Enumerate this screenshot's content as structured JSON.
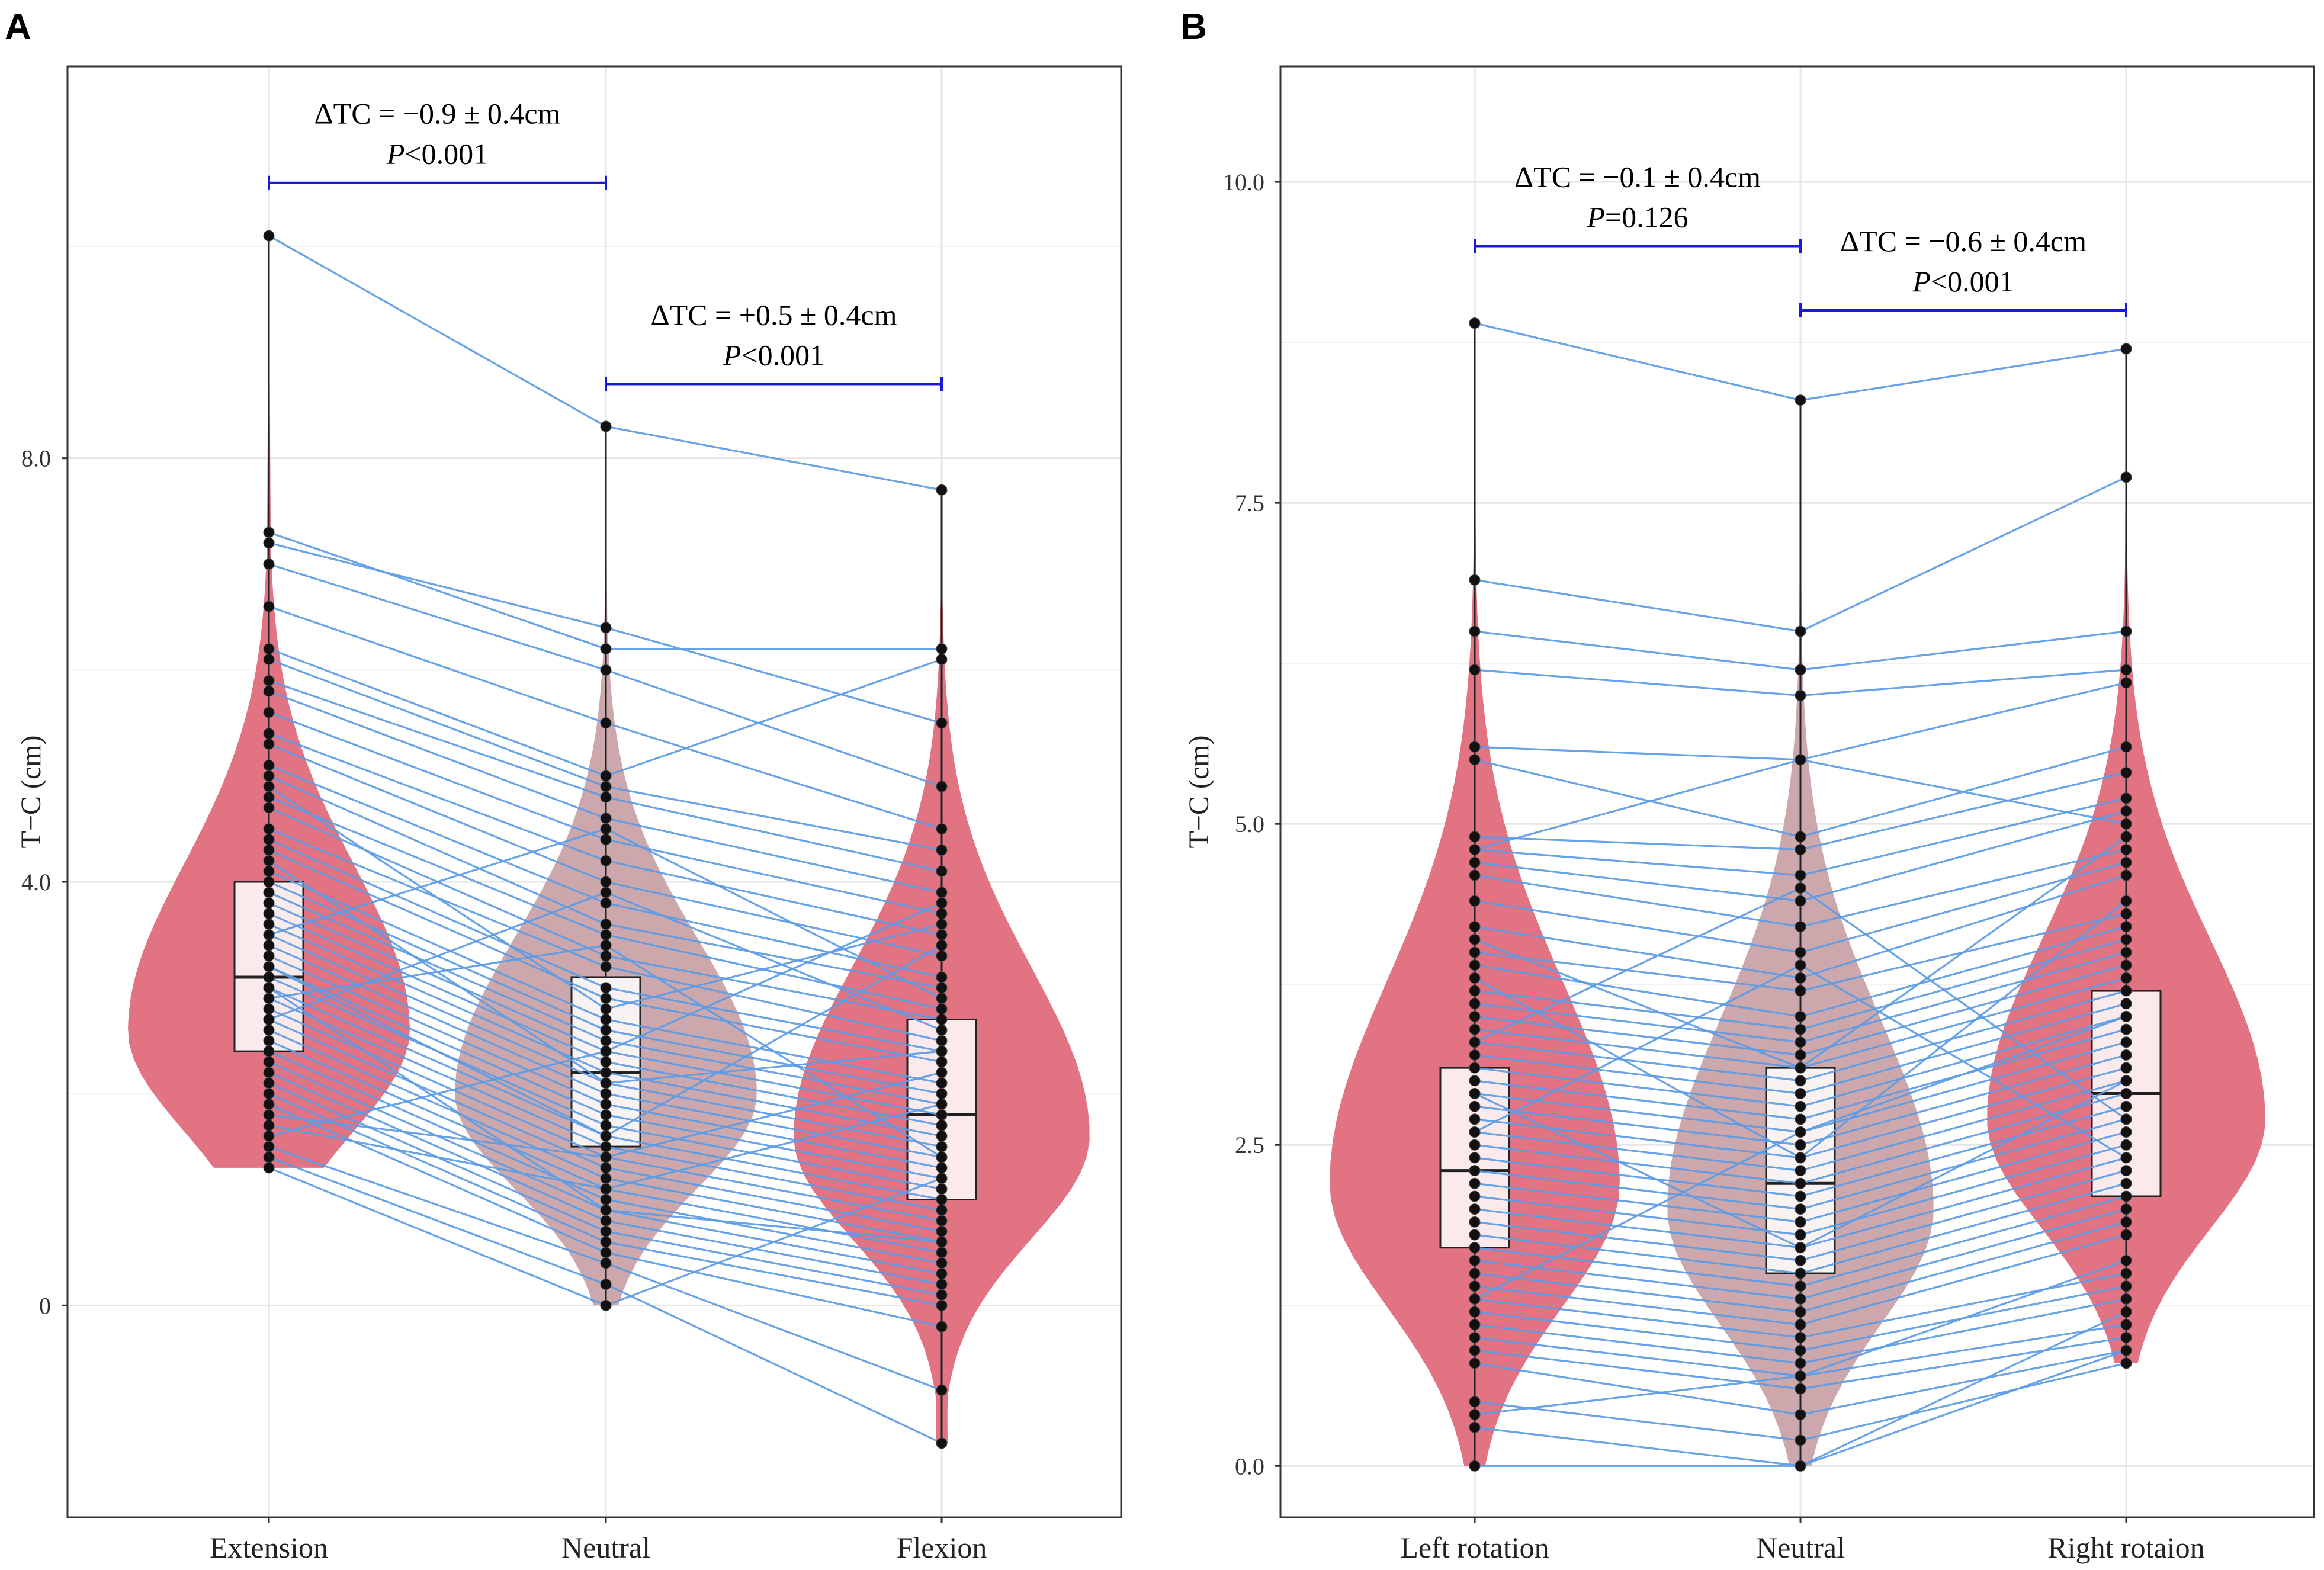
{
  "chart_data": [
    {
      "panel": "A",
      "type": "violin",
      "ylabel": "T−C (cm)",
      "ylim": [
        -2.0,
        11.7
      ],
      "yticks": [
        0,
        4.0,
        8.0
      ],
      "ytick_labels": [
        "0",
        "4.0",
        "8.0"
      ],
      "categories": [
        "Extension",
        "Neutral",
        "Flexion"
      ],
      "colors": [
        "#e06b7c",
        "#c9a3a8",
        "#e06b7c"
      ],
      "violins": [
        {
          "name": "Extension",
          "min": 1.3,
          "max": 10.1,
          "mode": 2.6,
          "box": {
            "q1": 2.4,
            "median": 3.1,
            "q3": 4.0,
            "lo": 1.3,
            "hi": 10.1
          }
        },
        {
          "name": "Neutral",
          "min": 0.0,
          "max": 8.3,
          "mode": 2.0,
          "box": {
            "q1": 1.5,
            "median": 2.2,
            "q3": 3.1,
            "lo": 0.0,
            "hi": 8.3
          }
        },
        {
          "name": "Flexion",
          "min": -1.3,
          "max": 7.7,
          "mode": 1.6,
          "box": {
            "q1": 1.0,
            "median": 1.8,
            "q3": 2.7,
            "lo": -1.3,
            "hi": 7.7
          }
        }
      ],
      "paired_values": [
        [
          10.1,
          8.3,
          7.7
        ],
        [
          7.3,
          6.2,
          6.2
        ],
        [
          7.2,
          6.4,
          5.5
        ],
        [
          7.0,
          6.0,
          4.9
        ],
        [
          6.6,
          5.5,
          4.5
        ],
        [
          6.1,
          4.9,
          4.3
        ],
        [
          5.9,
          4.8,
          4.1
        ],
        [
          5.8,
          4.6,
          3.9
        ],
        [
          5.6,
          4.4,
          3.7
        ],
        [
          5.4,
          4.2,
          3.5
        ],
        [
          5.3,
          4.0,
          3.3
        ],
        [
          5.1,
          3.8,
          3.1
        ],
        [
          5.0,
          3.6,
          3.0
        ],
        [
          4.8,
          3.5,
          2.8
        ],
        [
          4.7,
          3.3,
          2.7
        ],
        [
          4.5,
          3.2,
          2.5
        ],
        [
          4.4,
          3.0,
          2.4
        ],
        [
          4.3,
          2.9,
          2.3
        ],
        [
          4.1,
          2.7,
          2.1
        ],
        [
          4.0,
          2.6,
          2.0
        ],
        [
          3.9,
          2.5,
          1.9
        ],
        [
          3.8,
          2.4,
          1.8
        ],
        [
          3.7,
          2.3,
          1.7
        ],
        [
          3.6,
          2.2,
          1.6
        ],
        [
          3.5,
          2.1,
          1.5
        ],
        [
          3.4,
          2.0,
          1.4
        ],
        [
          3.3,
          1.9,
          1.3
        ],
        [
          3.2,
          1.8,
          1.2
        ],
        [
          3.1,
          1.7,
          1.1
        ],
        [
          3.0,
          1.6,
          1.0
        ],
        [
          2.9,
          1.5,
          0.9
        ],
        [
          2.8,
          1.4,
          0.8
        ],
        [
          2.7,
          1.3,
          0.7
        ],
        [
          2.6,
          1.2,
          0.6
        ],
        [
          2.5,
          1.1,
          0.5
        ],
        [
          2.4,
          1.0,
          0.4
        ],
        [
          2.3,
          0.9,
          0.3
        ],
        [
          2.2,
          0.8,
          0.2
        ],
        [
          2.1,
          0.7,
          0.1
        ],
        [
          2.0,
          0.6,
          0.0
        ],
        [
          1.9,
          0.5,
          -0.2
        ],
        [
          1.8,
          1.4,
          2.2
        ],
        [
          1.7,
          1.1,
          1.9
        ],
        [
          1.6,
          2.4,
          3.8
        ],
        [
          1.5,
          0.4,
          -0.8
        ],
        [
          1.4,
          0.2,
          -1.3
        ],
        [
          1.3,
          0.0,
          1.2
        ],
        [
          6.2,
          5.0,
          6.1
        ],
        [
          3.5,
          4.5,
          2.9
        ],
        [
          2.7,
          3.9,
          2.6
        ],
        [
          4.9,
          2.8,
          3.6
        ],
        [
          3.2,
          1.6,
          3.4
        ],
        [
          2.9,
          3.4,
          1.4
        ],
        [
          4.2,
          2.1,
          2.4
        ],
        [
          3.0,
          0.9,
          0.6
        ]
      ],
      "annotations": [
        {
          "text": "ΔTC = −0.9 ± 0.4cm",
          "p_label": "P",
          "p_value": "<0.001",
          "from": "Extension",
          "to": "Neutral",
          "y": 10.6
        },
        {
          "text": "ΔTC = +0.5 ± 0.4cm",
          "p_label": "P",
          "p_value": "<0.001",
          "from": "Neutral",
          "to": "Flexion",
          "y": 8.7
        }
      ]
    },
    {
      "panel": "B",
      "type": "violin",
      "ylabel": "T−C (cm)",
      "ylim": [
        -0.4,
        10.9
      ],
      "yticks": [
        0.0,
        2.5,
        5.0,
        7.5,
        10.0
      ],
      "ytick_labels": [
        "0.0",
        "2.5",
        "5.0",
        "7.5",
        "10.0"
      ],
      "categories": [
        "Left rotation",
        "Neutral",
        "Right rotaion"
      ],
      "colors": [
        "#e06b7c",
        "#c9a3a8",
        "#e06b7c"
      ],
      "violins": [
        {
          "name": "Left rotation",
          "min": 0.0,
          "max": 8.9,
          "mode": 2.2,
          "box": {
            "q1": 1.7,
            "median": 2.3,
            "q3": 3.1,
            "lo": 0.0,
            "hi": 8.9
          }
        },
        {
          "name": "Neutral",
          "min": 0.0,
          "max": 8.3,
          "mode": 2.0,
          "box": {
            "q1": 1.5,
            "median": 2.2,
            "q3": 3.1,
            "lo": 0.0,
            "hi": 8.3
          }
        },
        {
          "name": "Right rotaion",
          "min": 0.8,
          "max": 8.7,
          "mode": 2.7,
          "box": {
            "q1": 2.1,
            "median": 2.9,
            "q3": 3.7,
            "lo": 0.8,
            "hi": 8.7
          }
        }
      ],
      "paired_values": [
        [
          8.9,
          8.3,
          8.7
        ],
        [
          6.9,
          6.5,
          7.7
        ],
        [
          6.5,
          6.2,
          6.5
        ],
        [
          6.2,
          6.0,
          6.2
        ],
        [
          5.6,
          5.5,
          6.1
        ],
        [
          5.5,
          4.9,
          5.6
        ],
        [
          4.9,
          4.8,
          5.4
        ],
        [
          4.8,
          4.6,
          5.2
        ],
        [
          4.7,
          4.4,
          5.1
        ],
        [
          4.6,
          4.2,
          4.8
        ],
        [
          4.4,
          4.0,
          4.7
        ],
        [
          4.2,
          3.8,
          4.6
        ],
        [
          4.0,
          3.7,
          4.3
        ],
        [
          3.9,
          3.5,
          4.2
        ],
        [
          3.7,
          3.4,
          4.1
        ],
        [
          3.6,
          3.3,
          4.0
        ],
        [
          3.5,
          3.2,
          3.9
        ],
        [
          3.4,
          3.1,
          3.8
        ],
        [
          3.3,
          3.0,
          3.7
        ],
        [
          3.2,
          2.9,
          3.6
        ],
        [
          3.1,
          2.8,
          3.5
        ],
        [
          3.0,
          2.7,
          3.4
        ],
        [
          2.9,
          2.6,
          3.3
        ],
        [
          2.8,
          2.5,
          3.2
        ],
        [
          2.7,
          2.4,
          3.1
        ],
        [
          2.6,
          2.3,
          3.0
        ],
        [
          2.5,
          2.2,
          2.9
        ],
        [
          2.4,
          2.1,
          2.8
        ],
        [
          2.3,
          2.0,
          2.7
        ],
        [
          2.2,
          1.9,
          2.6
        ],
        [
          2.1,
          1.8,
          2.5
        ],
        [
          2.0,
          1.7,
          2.4
        ],
        [
          1.9,
          1.6,
          2.3
        ],
        [
          1.8,
          1.5,
          2.2
        ],
        [
          1.7,
          1.4,
          2.1
        ],
        [
          1.6,
          1.3,
          2.0
        ],
        [
          1.5,
          1.2,
          1.9
        ],
        [
          1.4,
          1.1,
          1.8
        ],
        [
          1.3,
          1.0,
          1.5
        ],
        [
          1.2,
          0.9,
          1.4
        ],
        [
          1.1,
          0.8,
          1.3
        ],
        [
          1.0,
          0.7,
          1.1
        ],
        [
          0.9,
          0.6,
          1.0
        ],
        [
          0.8,
          0.4,
          0.9
        ],
        [
          0.5,
          0.2,
          0.8
        ],
        [
          0.3,
          0.0,
          1.2
        ],
        [
          0.0,
          0.0,
          0.9
        ],
        [
          4.8,
          5.5,
          5.0
        ],
        [
          3.3,
          4.5,
          2.7
        ],
        [
          2.6,
          3.9,
          2.4
        ],
        [
          3.8,
          2.4,
          4.4
        ],
        [
          1.3,
          2.6,
          3.5
        ],
        [
          2.9,
          1.7,
          3.0
        ],
        [
          4.1,
          3.1,
          4.9
        ],
        [
          0.4,
          0.7,
          1.6
        ]
      ],
      "annotations": [
        {
          "text": "ΔTC = −0.1 ± 0.4cm",
          "p_label": "P",
          "p_value": "=0.126",
          "from": "Left rotation",
          "to": "Neutral",
          "y": 9.5
        },
        {
          "text": "ΔTC = −0.6 ± 0.4cm",
          "p_label": "P",
          "p_value": "<0.001",
          "from": "Neutral",
          "to": "Right rotaion",
          "y": 9.0
        }
      ]
    }
  ]
}
